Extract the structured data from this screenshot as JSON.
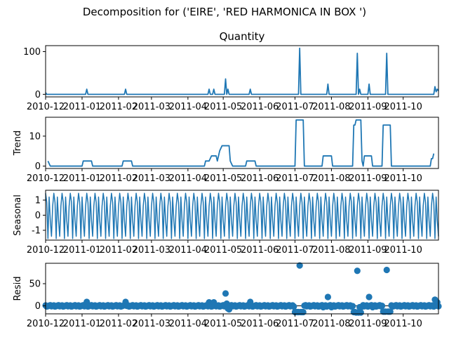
{
  "suptitle": "Decomposition for ('EIRE', 'RED  HARMONICA IN BOX ')",
  "colors": {
    "series": "#1f77b4",
    "axis": "#000000",
    "background": "#ffffff"
  },
  "chart_data": [
    {
      "type": "line",
      "title": "Quantity",
      "ylabel": "",
      "x_ticks": [
        "2010-12",
        "2011-01",
        "2011-02",
        "2011-03",
        "2011-04",
        "2011-05",
        "2011-06",
        "2011-07",
        "2011-08",
        "2011-09",
        "2011-10"
      ],
      "xlim": [
        "2010-12-01",
        "2011-10-31"
      ],
      "ylim": [
        -6,
        114
      ],
      "y_ticks": [
        0,
        100
      ],
      "baseline": 0,
      "points": [
        [
          "2010-12-01",
          4
        ],
        [
          "2010-12-02",
          0
        ],
        [
          "2011-01-04",
          0
        ],
        [
          "2011-01-05",
          12
        ],
        [
          "2011-01-06",
          0
        ],
        [
          "2011-02-06",
          0
        ],
        [
          "2011-02-07",
          12
        ],
        [
          "2011-02-08",
          0
        ],
        [
          "2011-04-18",
          0
        ],
        [
          "2011-04-19",
          12
        ],
        [
          "2011-04-20",
          0
        ],
        [
          "2011-04-22",
          0
        ],
        [
          "2011-04-23",
          12
        ],
        [
          "2011-04-24",
          0
        ],
        [
          "2011-05-02",
          0
        ],
        [
          "2011-05-03",
          36
        ],
        [
          "2011-05-04",
          0
        ],
        [
          "2011-05-05",
          12
        ],
        [
          "2011-05-06",
          0
        ],
        [
          "2011-05-23",
          0
        ],
        [
          "2011-05-24",
          12
        ],
        [
          "2011-05-25",
          0
        ],
        [
          "2011-07-04",
          0
        ],
        [
          "2011-07-05",
          108
        ],
        [
          "2011-07-06",
          0
        ],
        [
          "2011-07-28",
          0
        ],
        [
          "2011-07-29",
          24
        ],
        [
          "2011-07-30",
          0
        ],
        [
          "2011-08-22",
          0
        ],
        [
          "2011-08-23",
          96
        ],
        [
          "2011-08-24",
          0
        ],
        [
          "2011-08-25",
          12
        ],
        [
          "2011-08-26",
          0
        ],
        [
          "2011-09-01",
          0
        ],
        [
          "2011-09-02",
          24
        ],
        [
          "2011-09-03",
          0
        ],
        [
          "2011-09-16",
          0
        ],
        [
          "2011-09-17",
          96
        ],
        [
          "2011-09-18",
          0
        ],
        [
          "2011-10-27",
          0
        ],
        [
          "2011-10-28",
          18
        ],
        [
          "2011-10-29",
          6
        ],
        [
          "2011-10-30",
          12
        ],
        [
          "2011-10-31",
          8
        ]
      ]
    },
    {
      "type": "line",
      "title": "",
      "ylabel": "Trend",
      "x_ticks": [
        "2010-12",
        "2011-01",
        "2011-02",
        "2011-03",
        "2011-04",
        "2011-05",
        "2011-06",
        "2011-07",
        "2011-08",
        "2011-09",
        "2011-10"
      ],
      "xlim": [
        "2010-12-01",
        "2011-10-31"
      ],
      "ylim": [
        -0.8,
        16.3
      ],
      "y_ticks": [
        0,
        10
      ],
      "points": [
        [
          "2010-12-03",
          1.7
        ],
        [
          "2010-12-05",
          0
        ],
        [
          "2011-01-01",
          0
        ],
        [
          "2011-01-02",
          1.7
        ],
        [
          "2011-01-09",
          1.7
        ],
        [
          "2011-01-10",
          0
        ],
        [
          "2011-02-04",
          0
        ],
        [
          "2011-02-05",
          1.7
        ],
        [
          "2011-02-12",
          1.7
        ],
        [
          "2011-02-13",
          0
        ],
        [
          "2011-04-15",
          0
        ],
        [
          "2011-04-16",
          1.7
        ],
        [
          "2011-04-19",
          1.7
        ],
        [
          "2011-04-21",
          3.4
        ],
        [
          "2011-04-25",
          3.4
        ],
        [
          "2011-04-26",
          1.7
        ],
        [
          "2011-04-28",
          5.1
        ],
        [
          "2011-04-30",
          6.8
        ],
        [
          "2011-05-06",
          6.8
        ],
        [
          "2011-05-07",
          1.7
        ],
        [
          "2011-05-09",
          0
        ],
        [
          "2011-05-20",
          0
        ],
        [
          "2011-05-21",
          1.7
        ],
        [
          "2011-05-28",
          1.7
        ],
        [
          "2011-05-29",
          0
        ],
        [
          "2011-07-01",
          0
        ],
        [
          "2011-07-02",
          15.4
        ],
        [
          "2011-07-08",
          15.4
        ],
        [
          "2011-07-09",
          0
        ],
        [
          "2011-07-24",
          0
        ],
        [
          "2011-07-25",
          3.4
        ],
        [
          "2011-08-01",
          3.4
        ],
        [
          "2011-08-02",
          0
        ],
        [
          "2011-08-19",
          0
        ],
        [
          "2011-08-20",
          13.7
        ],
        [
          "2011-08-21",
          13.7
        ],
        [
          "2011-08-22",
          15.4
        ],
        [
          "2011-08-26",
          15.4
        ],
        [
          "2011-08-27",
          1.7
        ],
        [
          "2011-08-28",
          0
        ],
        [
          "2011-08-29",
          3.4
        ],
        [
          "2011-09-04",
          3.4
        ],
        [
          "2011-09-05",
          0
        ],
        [
          "2011-09-13",
          0
        ],
        [
          "2011-09-14",
          13.7
        ],
        [
          "2011-09-20",
          13.7
        ],
        [
          "2011-09-21",
          0
        ],
        [
          "2011-10-04",
          0
        ],
        [
          "2011-10-05",
          0
        ],
        [
          "2011-10-24",
          0
        ],
        [
          "2011-10-25",
          2.5
        ],
        [
          "2011-10-26",
          2.5
        ],
        [
          "2011-10-27",
          4.2
        ]
      ]
    },
    {
      "type": "line",
      "title": "",
      "ylabel": "Seasonal",
      "x_ticks": [
        "2010-12",
        "2011-01",
        "2011-02",
        "2011-03",
        "2011-04",
        "2011-05",
        "2011-06",
        "2011-07",
        "2011-08",
        "2011-09",
        "2011-10"
      ],
      "xlim": [
        "2010-12-01",
        "2011-10-31"
      ],
      "ylim": [
        -1.65,
        1.65
      ],
      "y_ticks": [
        -1,
        0,
        1
      ],
      "period_days": 7,
      "cycle": [
        1.45,
        0.85,
        -1.55,
        1.2,
        -0.35,
        -1.4,
        0.6
      ],
      "x_start": "2010-12-01",
      "x_end": "2011-10-31"
    },
    {
      "type": "scatter",
      "title": "",
      "ylabel": "Resid",
      "x_ticks": [
        "2010-12",
        "2011-01",
        "2011-02",
        "2011-03",
        "2011-04",
        "2011-05",
        "2011-06",
        "2011-07",
        "2011-08",
        "2011-09",
        "2011-10"
      ],
      "xlim": [
        "2010-12-01",
        "2011-10-31"
      ],
      "ylim": [
        -18,
        96
      ],
      "y_ticks": [
        0,
        50
      ],
      "baseline": 0,
      "outliers": [
        [
          "2011-01-05",
          9
        ],
        [
          "2011-02-07",
          9
        ],
        [
          "2011-05-03",
          28
        ],
        [
          "2011-05-05",
          -6
        ],
        [
          "2011-05-06",
          -8
        ],
        [
          "2011-05-04",
          5
        ],
        [
          "2011-04-19",
          8
        ],
        [
          "2011-04-23",
          8
        ],
        [
          "2011-05-24",
          9
        ],
        [
          "2011-07-01",
          -14
        ],
        [
          "2011-07-02",
          -14
        ],
        [
          "2011-07-03",
          -14
        ],
        [
          "2011-07-04",
          -14
        ],
        [
          "2011-07-05",
          91
        ],
        [
          "2011-07-06",
          -14
        ],
        [
          "2011-07-07",
          -14
        ],
        [
          "2011-07-08",
          -14
        ],
        [
          "2011-07-29",
          20
        ],
        [
          "2011-07-25",
          -3
        ],
        [
          "2011-08-01",
          -3
        ],
        [
          "2011-08-20",
          -14
        ],
        [
          "2011-08-21",
          -14
        ],
        [
          "2011-08-22",
          -15
        ],
        [
          "2011-08-23",
          79
        ],
        [
          "2011-08-24",
          -15
        ],
        [
          "2011-08-25",
          -3
        ],
        [
          "2011-08-26",
          -15
        ],
        [
          "2011-08-27",
          -2
        ],
        [
          "2011-09-02",
          20
        ],
        [
          "2011-09-05",
          -3
        ],
        [
          "2011-09-14",
          -13
        ],
        [
          "2011-09-15",
          -13
        ],
        [
          "2011-09-16",
          -13
        ],
        [
          "2011-09-17",
          81
        ],
        [
          "2011-09-18",
          -13
        ],
        [
          "2011-09-19",
          -13
        ],
        [
          "2011-09-20",
          -13
        ],
        [
          "2011-10-28",
          14
        ],
        [
          "2011-10-30",
          8
        ]
      ]
    }
  ]
}
